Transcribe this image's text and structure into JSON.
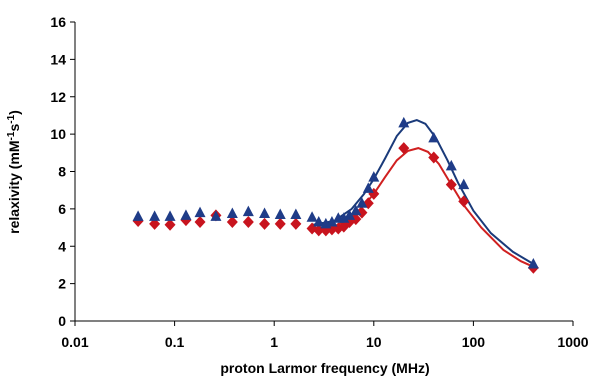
{
  "chart_data": {
    "type": "scatter",
    "xlabel": "proton Larmor frequency (MHz)",
    "ylabel": {
      "base": "relaxivity (mM",
      "sup1": "-1",
      "mid": "s",
      "sup2": "-1",
      "end": ")"
    },
    "xscale": "log",
    "xlim": [
      0.01,
      1000
    ],
    "ylim": [
      0,
      16
    ],
    "x_ticks": [
      0.01,
      0.1,
      1,
      10,
      100,
      1000
    ],
    "x_tick_labels": [
      "0.01",
      "0.1",
      "1",
      "10",
      "100",
      "1000"
    ],
    "y_ticks": [
      0,
      2,
      4,
      6,
      8,
      10,
      12,
      14,
      16
    ],
    "y_tick_labels": [
      "0",
      "2",
      "4",
      "6",
      "8",
      "10",
      "12",
      "14",
      "16"
    ],
    "grid": false,
    "legend": "none",
    "series": [
      {
        "marker": "triangle",
        "color": "#1f3c88",
        "line_color": "#1a3a7a",
        "points": [
          {
            "x": 0.043,
            "y": 5.6
          },
          {
            "x": 0.063,
            "y": 5.6
          },
          {
            "x": 0.09,
            "y": 5.6
          },
          {
            "x": 0.13,
            "y": 5.65
          },
          {
            "x": 0.18,
            "y": 5.8
          },
          {
            "x": 0.26,
            "y": 5.6
          },
          {
            "x": 0.38,
            "y": 5.75
          },
          {
            "x": 0.55,
            "y": 5.85
          },
          {
            "x": 0.8,
            "y": 5.75
          },
          {
            "x": 1.15,
            "y": 5.7
          },
          {
            "x": 1.65,
            "y": 5.7
          },
          {
            "x": 2.4,
            "y": 5.55
          },
          {
            "x": 2.8,
            "y": 5.3
          },
          {
            "x": 3.3,
            "y": 5.2
          },
          {
            "x": 3.8,
            "y": 5.3
          },
          {
            "x": 4.4,
            "y": 5.5
          },
          {
            "x": 5.0,
            "y": 5.5
          },
          {
            "x": 5.7,
            "y": 5.65
          },
          {
            "x": 6.6,
            "y": 5.9
          },
          {
            "x": 7.6,
            "y": 6.3
          },
          {
            "x": 8.8,
            "y": 7.1
          },
          {
            "x": 10,
            "y": 7.7
          },
          {
            "x": 20,
            "y": 10.6
          },
          {
            "x": 40,
            "y": 9.8
          },
          {
            "x": 60,
            "y": 8.3
          },
          {
            "x": 80,
            "y": 7.3
          },
          {
            "x": 400,
            "y": 3.05
          }
        ],
        "fit": [
          {
            "x": 2.4,
            "y": 5.15
          },
          {
            "x": 4,
            "y": 5.35
          },
          {
            "x": 6,
            "y": 6.0
          },
          {
            "x": 8,
            "y": 6.8
          },
          {
            "x": 10,
            "y": 7.6
          },
          {
            "x": 13,
            "y": 8.7
          },
          {
            "x": 17,
            "y": 9.9
          },
          {
            "x": 22,
            "y": 10.6
          },
          {
            "x": 27,
            "y": 10.75
          },
          {
            "x": 33,
            "y": 10.55
          },
          {
            "x": 42,
            "y": 9.8
          },
          {
            "x": 55,
            "y": 8.6
          },
          {
            "x": 70,
            "y": 7.4
          },
          {
            "x": 100,
            "y": 5.9
          },
          {
            "x": 150,
            "y": 4.7
          },
          {
            "x": 250,
            "y": 3.7
          },
          {
            "x": 400,
            "y": 3.05
          }
        ]
      },
      {
        "marker": "diamond",
        "color": "#c8141e",
        "line_color": "#d02020",
        "points": [
          {
            "x": 0.043,
            "y": 5.35
          },
          {
            "x": 0.063,
            "y": 5.2
          },
          {
            "x": 0.09,
            "y": 5.15
          },
          {
            "x": 0.13,
            "y": 5.4
          },
          {
            "x": 0.18,
            "y": 5.3
          },
          {
            "x": 0.26,
            "y": 5.65
          },
          {
            "x": 0.38,
            "y": 5.3
          },
          {
            "x": 0.55,
            "y": 5.3
          },
          {
            "x": 0.8,
            "y": 5.2
          },
          {
            "x": 1.15,
            "y": 5.2
          },
          {
            "x": 1.65,
            "y": 5.2
          },
          {
            "x": 2.4,
            "y": 4.95
          },
          {
            "x": 2.8,
            "y": 4.85
          },
          {
            "x": 3.3,
            "y": 4.85
          },
          {
            "x": 3.8,
            "y": 4.9
          },
          {
            "x": 4.4,
            "y": 4.95
          },
          {
            "x": 5.0,
            "y": 5.05
          },
          {
            "x": 5.7,
            "y": 5.3
          },
          {
            "x": 6.6,
            "y": 5.45
          },
          {
            "x": 7.6,
            "y": 5.8
          },
          {
            "x": 8.8,
            "y": 6.3
          },
          {
            "x": 10,
            "y": 6.8
          },
          {
            "x": 20,
            "y": 9.25
          },
          {
            "x": 40,
            "y": 8.75
          },
          {
            "x": 60,
            "y": 7.3
          },
          {
            "x": 80,
            "y": 6.4
          },
          {
            "x": 400,
            "y": 2.85
          }
        ],
        "fit": [
          {
            "x": 2.4,
            "y": 4.9
          },
          {
            "x": 4,
            "y": 5.05
          },
          {
            "x": 6,
            "y": 5.55
          },
          {
            "x": 8,
            "y": 6.2
          },
          {
            "x": 10,
            "y": 6.8
          },
          {
            "x": 13,
            "y": 7.7
          },
          {
            "x": 17,
            "y": 8.6
          },
          {
            "x": 22,
            "y": 9.1
          },
          {
            "x": 28,
            "y": 9.25
          },
          {
            "x": 35,
            "y": 9.05
          },
          {
            "x": 45,
            "y": 8.4
          },
          {
            "x": 60,
            "y": 7.3
          },
          {
            "x": 80,
            "y": 6.2
          },
          {
            "x": 120,
            "y": 5.0
          },
          {
            "x": 200,
            "y": 3.8
          },
          {
            "x": 300,
            "y": 3.2
          },
          {
            "x": 400,
            "y": 2.9
          }
        ]
      }
    ]
  }
}
